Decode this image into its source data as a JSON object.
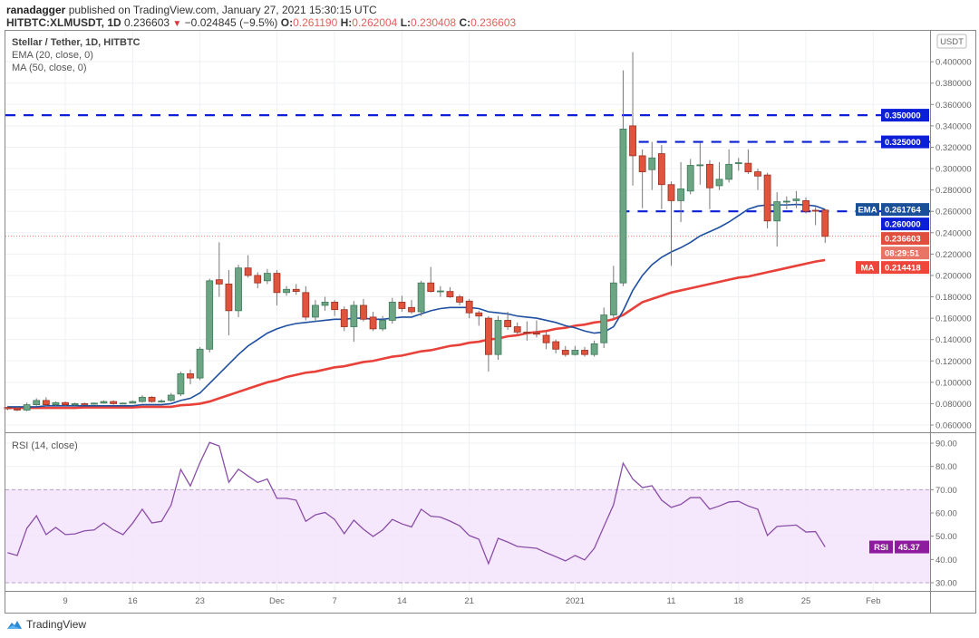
{
  "header": {
    "publisher": "ranadagger",
    "published_text": "published on TradingView.com, January 27, 2021 15:30:15 UTC",
    "symbol": "HITBTC:XLMUSDT, 1D",
    "last": "0.236603",
    "change": "−0.024845 (−9.5%)",
    "o_label": "O:",
    "o": "0.261190",
    "h_label": "H:",
    "h": "0.262004",
    "l_label": "L:",
    "l": "0.230408",
    "c_label": "C:",
    "c": "0.236603"
  },
  "legend": {
    "title": "Stellar / Tether, 1D, HITBTC",
    "ema": "EMA (20, close, 0)",
    "ma": "MA (50, close, 0)",
    "rsi": "RSI (14, close)"
  },
  "footer": {
    "brand": "TradingView"
  },
  "chart_data": [
    {
      "type": "candlestick",
      "currency_label": "USDT",
      "first_date": "2020-11-03",
      "interval": "1D",
      "ylim": [
        0.05,
        0.42
      ],
      "y_ticks": [
        "0.060000",
        "0.080000",
        "0.100000",
        "0.120000",
        "0.140000",
        "0.160000",
        "0.180000",
        "0.200000",
        "0.220000",
        "0.240000",
        "0.260000",
        "0.280000",
        "0.300000",
        "0.320000",
        "0.340000",
        "0.360000",
        "0.380000",
        "0.400000"
      ],
      "x_ticks": [
        {
          "date": "2020-11-09",
          "label": "9"
        },
        {
          "date": "2020-11-16",
          "label": "16"
        },
        {
          "date": "2020-11-23",
          "label": "23"
        },
        {
          "date": "2020-12-01",
          "label": "Dec"
        },
        {
          "date": "2020-12-07",
          "label": "7"
        },
        {
          "date": "2020-12-14",
          "label": "14"
        },
        {
          "date": "2020-12-21",
          "label": "21"
        },
        {
          "date": "2021-01-01",
          "label": "2021"
        },
        {
          "date": "2021-01-11",
          "label": "11"
        },
        {
          "date": "2021-01-18",
          "label": "18"
        },
        {
          "date": "2021-01-25",
          "label": "25"
        },
        {
          "date": "2021-02-01",
          "label": "Feb"
        }
      ],
      "grid": true,
      "colors": {
        "up": "#6ba583",
        "down": "#e0533d",
        "ema": "#1e4fa0",
        "ma": "#e8413a",
        "level": "#0b1fd6",
        "ema_tag": "#1a4f99",
        "price_tag": "#e04e3e",
        "ma_tag": "#f0453a"
      },
      "ohlc": [
        [
          0.0765,
          0.078,
          0.074,
          0.0752
        ],
        [
          0.0752,
          0.077,
          0.073,
          0.074
        ],
        [
          0.074,
          0.081,
          0.073,
          0.079
        ],
        [
          0.079,
          0.085,
          0.078,
          0.083
        ],
        [
          0.083,
          0.086,
          0.078,
          0.079
        ],
        [
          0.079,
          0.082,
          0.078,
          0.081
        ],
        [
          0.081,
          0.082,
          0.078,
          0.079
        ],
        [
          0.079,
          0.081,
          0.078,
          0.08
        ],
        [
          0.08,
          0.081,
          0.079,
          0.0795
        ],
        [
          0.0795,
          0.081,
          0.079,
          0.0805
        ],
        [
          0.0805,
          0.083,
          0.08,
          0.082
        ],
        [
          0.082,
          0.083,
          0.079,
          0.08
        ],
        [
          0.08,
          0.081,
          0.0795,
          0.0805
        ],
        [
          0.0805,
          0.083,
          0.08,
          0.082
        ],
        [
          0.082,
          0.088,
          0.081,
          0.086
        ],
        [
          0.086,
          0.087,
          0.081,
          0.082
        ],
        [
          0.082,
          0.084,
          0.081,
          0.0825
        ],
        [
          0.083,
          0.09,
          0.082,
          0.088
        ],
        [
          0.089,
          0.11,
          0.087,
          0.108
        ],
        [
          0.108,
          0.112,
          0.098,
          0.104
        ],
        [
          0.104,
          0.133,
          0.102,
          0.131
        ],
        [
          0.131,
          0.197,
          0.128,
          0.195
        ],
        [
          0.196,
          0.231,
          0.18,
          0.192
        ],
        [
          0.192,
          0.205,
          0.144,
          0.167
        ],
        [
          0.167,
          0.21,
          0.161,
          0.207
        ],
        [
          0.207,
          0.219,
          0.198,
          0.2
        ],
        [
          0.2,
          0.203,
          0.188,
          0.193
        ],
        [
          0.195,
          0.206,
          0.192,
          0.202
        ],
        [
          0.202,
          0.205,
          0.172,
          0.184
        ],
        [
          0.184,
          0.19,
          0.181,
          0.187
        ],
        [
          0.187,
          0.192,
          0.182,
          0.185
        ],
        [
          0.184,
          0.19,
          0.158,
          0.161
        ],
        [
          0.161,
          0.177,
          0.157,
          0.172
        ],
        [
          0.172,
          0.18,
          0.167,
          0.175
        ],
        [
          0.175,
          0.177,
          0.162,
          0.168
        ],
        [
          0.168,
          0.171,
          0.148,
          0.152
        ],
        [
          0.152,
          0.176,
          0.138,
          0.172
        ],
        [
          0.172,
          0.178,
          0.157,
          0.159
        ],
        [
          0.161,
          0.166,
          0.148,
          0.15
        ],
        [
          0.15,
          0.162,
          0.148,
          0.158
        ],
        [
          0.158,
          0.179,
          0.155,
          0.175
        ],
        [
          0.175,
          0.181,
          0.166,
          0.169
        ],
        [
          0.17,
          0.177,
          0.164,
          0.166
        ],
        [
          0.166,
          0.195,
          0.162,
          0.193
        ],
        [
          0.193,
          0.208,
          0.184,
          0.185
        ],
        [
          0.185,
          0.19,
          0.18,
          0.1855
        ],
        [
          0.185,
          0.189,
          0.179,
          0.18
        ],
        [
          0.18,
          0.182,
          0.172,
          0.175
        ],
        [
          0.176,
          0.178,
          0.16,
          0.165
        ],
        [
          0.165,
          0.167,
          0.153,
          0.162
        ],
        [
          0.16,
          0.162,
          0.11,
          0.126
        ],
        [
          0.126,
          0.162,
          0.121,
          0.158
        ],
        [
          0.158,
          0.166,
          0.149,
          0.152
        ],
        [
          0.152,
          0.156,
          0.145,
          0.147
        ],
        [
          0.147,
          0.157,
          0.139,
          0.146
        ],
        [
          0.146,
          0.158,
          0.142,
          0.145
        ],
        [
          0.144,
          0.147,
          0.131,
          0.137
        ],
        [
          0.138,
          0.14,
          0.127,
          0.131
        ],
        [
          0.13,
          0.134,
          0.124,
          0.126
        ],
        [
          0.126,
          0.134,
          0.125,
          0.13
        ],
        [
          0.13,
          0.133,
          0.124,
          0.126
        ],
        [
          0.126,
          0.139,
          0.124,
          0.136
        ],
        [
          0.137,
          0.17,
          0.132,
          0.163
        ],
        [
          0.163,
          0.209,
          0.16,
          0.193
        ],
        [
          0.193,
          0.392,
          0.19,
          0.337
        ],
        [
          0.34,
          0.409,
          0.284,
          0.312
        ],
        [
          0.312,
          0.318,
          0.263,
          0.297
        ],
        [
          0.299,
          0.325,
          0.28,
          0.31
        ],
        [
          0.314,
          0.322,
          0.262,
          0.285
        ],
        [
          0.285,
          0.288,
          0.209,
          0.27
        ],
        [
          0.27,
          0.306,
          0.25,
          0.281
        ],
        [
          0.279,
          0.309,
          0.276,
          0.303
        ],
        [
          0.303,
          0.324,
          0.285,
          0.3035
        ],
        [
          0.304,
          0.308,
          0.262,
          0.282
        ],
        [
          0.284,
          0.306,
          0.28,
          0.29
        ],
        [
          0.29,
          0.318,
          0.287,
          0.304
        ],
        [
          0.305,
          0.31,
          0.298,
          0.3055
        ],
        [
          0.305,
          0.318,
          0.295,
          0.297
        ],
        [
          0.297,
          0.3,
          0.28,
          0.293
        ],
        [
          0.294,
          0.296,
          0.244,
          0.251
        ],
        [
          0.251,
          0.278,
          0.227,
          0.269
        ],
        [
          0.269,
          0.274,
          0.262,
          0.2695
        ],
        [
          0.27,
          0.279,
          0.263,
          0.2715
        ],
        [
          0.27,
          0.273,
          0.258,
          0.26
        ],
        [
          0.261,
          0.264,
          0.247,
          0.2605
        ],
        [
          0.26119,
          0.262004,
          0.230408,
          0.236603
        ]
      ],
      "ema20": [
        0.077,
        0.077,
        0.077,
        0.077,
        0.078,
        0.078,
        0.078,
        0.078,
        0.078,
        0.078,
        0.078,
        0.078,
        0.078,
        0.078,
        0.079,
        0.079,
        0.079,
        0.08,
        0.083,
        0.085,
        0.09,
        0.099,
        0.108,
        0.117,
        0.126,
        0.134,
        0.14,
        0.146,
        0.15,
        0.153,
        0.155,
        0.156,
        0.157,
        0.158,
        0.159,
        0.159,
        0.16,
        0.16,
        0.159,
        0.159,
        0.16,
        0.161,
        0.161,
        0.164,
        0.167,
        0.169,
        0.17,
        0.17,
        0.17,
        0.169,
        0.166,
        0.165,
        0.164,
        0.162,
        0.161,
        0.16,
        0.158,
        0.156,
        0.153,
        0.151,
        0.148,
        0.146,
        0.147,
        0.152,
        0.167,
        0.186,
        0.2,
        0.21,
        0.217,
        0.222,
        0.226,
        0.231,
        0.237,
        0.241,
        0.245,
        0.25,
        0.256,
        0.262,
        0.265,
        0.266,
        0.266,
        0.266,
        0.2665,
        0.266,
        0.265,
        0.261764
      ],
      "ma50": [
        0.076,
        0.076,
        0.076,
        0.076,
        0.076,
        0.076,
        0.076,
        0.076,
        0.0765,
        0.0765,
        0.0765,
        0.0765,
        0.0765,
        0.0765,
        0.077,
        0.077,
        0.077,
        0.077,
        0.0785,
        0.079,
        0.08,
        0.082,
        0.085,
        0.088,
        0.091,
        0.094,
        0.097,
        0.1,
        0.102,
        0.105,
        0.107,
        0.109,
        0.11,
        0.112,
        0.114,
        0.115,
        0.117,
        0.119,
        0.12,
        0.122,
        0.124,
        0.125,
        0.127,
        0.129,
        0.13,
        0.132,
        0.134,
        0.135,
        0.137,
        0.138,
        0.14,
        0.141,
        0.143,
        0.144,
        0.146,
        0.147,
        0.148,
        0.15,
        0.151,
        0.153,
        0.154,
        0.156,
        0.157,
        0.159,
        0.163,
        0.169,
        0.175,
        0.178,
        0.181,
        0.184,
        0.186,
        0.188,
        0.19,
        0.192,
        0.194,
        0.196,
        0.198,
        0.199,
        0.201,
        0.203,
        0.205,
        0.207,
        0.209,
        0.211,
        0.213,
        0.214418
      ],
      "levels": [
        {
          "value": 0.35,
          "from": "2020-11-03",
          "label": "0.350000"
        },
        {
          "value": 0.325,
          "from": "2021-01-08",
          "label": "0.325000"
        },
        {
          "value": 0.26,
          "from": "2021-01-06",
          "label": "0.260000"
        }
      ],
      "tags": {
        "ema_label": "EMA",
        "ema_value": "0.261764",
        "price_value": "0.236603",
        "countdown": "08:29:51",
        "ma_label": "MA",
        "ma_value": "0.214418"
      }
    },
    {
      "type": "line",
      "ylim": [
        25,
        95
      ],
      "y_ticks": [
        "30.00",
        "40.00",
        "50.00",
        "60.00",
        "70.00",
        "80.00",
        "90.00"
      ],
      "band": [
        30,
        70
      ],
      "color": "#8a4fa8",
      "band_color": "#f3e3fc",
      "tag_color": "#8e1b9e",
      "tag_label": "RSI",
      "tag_value": "45.37",
      "values": [
        42.9,
        41.7,
        53.4,
        58.8,
        50.7,
        53.8,
        50.7,
        51.0,
        52.3,
        52.7,
        55.7,
        52.7,
        50.7,
        55.6,
        61.6,
        55.7,
        56.4,
        63.4,
        78.7,
        71.6,
        81.6,
        90.3,
        88.8,
        73.2,
        78.8,
        75.9,
        73.1,
        74.6,
        66.3,
        66.3,
        65.5,
        56.4,
        59.2,
        60.2,
        57.2,
        51.1,
        56.9,
        53.0,
        49.9,
        52.7,
        57.2,
        55.3,
        54.0,
        61.6,
        58.6,
        58.2,
        56.5,
        54.5,
        50.3,
        48.7,
        38.2,
        49.1,
        47.5,
        45.6,
        45.2,
        44.8,
        42.9,
        41.2,
        39.4,
        41.7,
        39.8,
        44.8,
        54.2,
        63.5,
        81.4,
        74.6,
        70.9,
        71.7,
        65.5,
        62.4,
        63.7,
        66.6,
        66.6,
        61.6,
        63.0,
        64.7,
        65.0,
        63.0,
        61.6,
        50.3,
        54.2,
        54.5,
        54.8,
        51.8,
        52.0,
        45.37
      ]
    }
  ]
}
